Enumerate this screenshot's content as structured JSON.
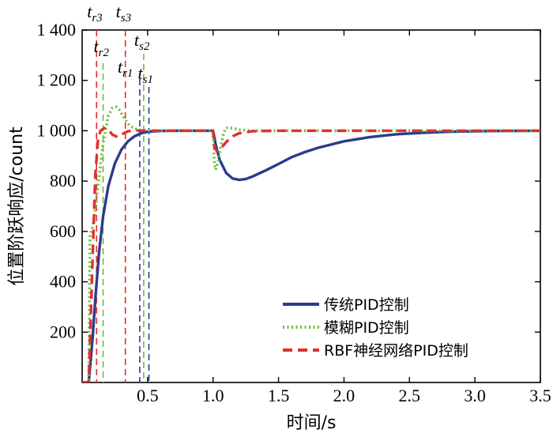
{
  "chart_data": {
    "type": "line",
    "title": "",
    "xlabel": "时间/s",
    "ylabel": "位置阶跃响应/count",
    "xlim": [
      0,
      3.5
    ],
    "ylim": [
      0,
      1400
    ],
    "x_ticks": [
      0.5,
      1.0,
      1.5,
      2.0,
      2.5,
      3.0,
      3.5
    ],
    "x_tick_labels": [
      "0.5",
      "1.0",
      "1.5",
      "2.0",
      "2.5",
      "3.0",
      "3.5"
    ],
    "y_ticks": [
      200,
      400,
      600,
      800,
      1000,
      1200,
      1400
    ],
    "y_tick_labels": [
      "200",
      "400",
      "600",
      "800",
      "1 000",
      "1 200",
      "1 400"
    ],
    "legend_position": "bottom-right",
    "series": [
      {
        "name": "传统PID控制",
        "color": "#2e3a8c",
        "style": "solid",
        "x": [
          0,
          0.05,
          0.08,
          0.1,
          0.13,
          0.16,
          0.2,
          0.25,
          0.3,
          0.35,
          0.4,
          0.45,
          0.5,
          0.6,
          0.7,
          0.8,
          0.9,
          1.0,
          1.02,
          1.05,
          1.1,
          1.15,
          1.2,
          1.25,
          1.3,
          1.4,
          1.5,
          1.6,
          1.7,
          1.8,
          2.0,
          2.2,
          2.4,
          2.6,
          2.8,
          3.0,
          3.2,
          3.5
        ],
        "y": [
          0,
          0,
          180,
          330,
          520,
          660,
          780,
          870,
          925,
          958,
          978,
          990,
          996,
          999,
          1000,
          1000,
          1000,
          1000,
          945,
          885,
          832,
          810,
          805,
          808,
          818,
          842,
          868,
          895,
          915,
          932,
          958,
          975,
          986,
          992,
          996,
          998,
          999,
          1000
        ]
      },
      {
        "name": "模糊PID控制",
        "color": "#6dba3a",
        "style": "dotted",
        "x": [
          0,
          0.05,
          0.06,
          0.08,
          0.1,
          0.13,
          0.16,
          0.2,
          0.23,
          0.26,
          0.29,
          0.32,
          0.36,
          0.4,
          0.45,
          0.5,
          0.6,
          0.8,
          1.0,
          1.01,
          1.02,
          1.04,
          1.06,
          1.08,
          1.1,
          1.15,
          1.2,
          1.3,
          1.5,
          2.0,
          2.5,
          3.0,
          3.5
        ],
        "y": [
          0,
          0,
          580,
          620,
          690,
          820,
          950,
          1060,
          1090,
          1095,
          1080,
          1050,
          1022,
          1008,
          1002,
          1000,
          1000,
          1000,
          1000,
          870,
          845,
          880,
          940,
          990,
          1012,
          1010,
          1004,
          1000,
          1000,
          1000,
          1000,
          1000,
          1000
        ]
      },
      {
        "name": "RBF神经网络PID控制",
        "color": "#e0302b",
        "style": "dashed",
        "x": [
          0,
          0.05,
          0.08,
          0.1,
          0.12,
          0.14,
          0.17,
          0.2,
          0.23,
          0.27,
          0.3,
          0.35,
          0.4,
          0.5,
          0.7,
          1.0,
          1.01,
          1.03,
          1.06,
          1.1,
          1.15,
          1.2,
          1.3,
          1.5,
          2.0,
          2.5,
          3.0,
          3.5
        ],
        "y": [
          0,
          0,
          500,
          820,
          960,
          1000,
          1010,
          1005,
          985,
          975,
          985,
          998,
          1001,
          1000,
          1000,
          1000,
          935,
          918,
          930,
          955,
          978,
          990,
          998,
          1000,
          1000,
          1000,
          1000,
          1000
        ]
      }
    ],
    "markers": [
      {
        "base": "t",
        "sub": "r3",
        "x": 0.11,
        "color": "#e0302b"
      },
      {
        "base": "t",
        "sub": "s3",
        "x": 0.33,
        "color": "#e0302b"
      },
      {
        "base": "t",
        "sub": "r2",
        "x": 0.16,
        "color": "#6dba3a"
      },
      {
        "base": "t",
        "sub": "s2",
        "x": 0.47,
        "color": "#6dba3a"
      },
      {
        "base": "t",
        "sub": "r1",
        "x": 0.44,
        "color": "#2e3a8c"
      },
      {
        "base": "t",
        "sub": "s1",
        "x": 0.51,
        "color": "#2e3a8c"
      }
    ]
  }
}
